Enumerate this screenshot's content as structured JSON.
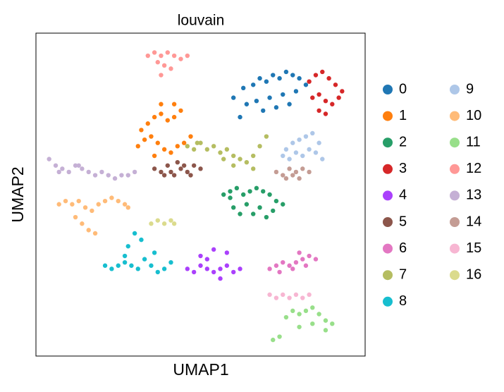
{
  "chart_data": {
    "type": "scatter",
    "title": "louvain",
    "x_label": "UMAP1",
    "y_label": "UMAP2",
    "xlim": [
      0,
      100
    ],
    "ylim": [
      0,
      100
    ],
    "legend": "right",
    "series": [
      {
        "name": "0",
        "color": "#1f77b4",
        "x": [
          60,
          63,
          66,
          68,
          70,
          72,
          74,
          76,
          78,
          80,
          82,
          64,
          67,
          71,
          75,
          79,
          69,
          73,
          77,
          62
        ],
        "y": [
          80,
          83,
          84,
          86,
          85,
          87,
          86,
          88,
          87,
          86,
          84,
          78,
          79,
          80,
          81,
          82,
          76,
          77,
          78,
          74
        ]
      },
      {
        "name": "1",
        "color": "#ff7f0e",
        "x": [
          31,
          33,
          35,
          37,
          39,
          41,
          43,
          45,
          47,
          34,
          36,
          38,
          40,
          42,
          44,
          32,
          38,
          42,
          36
        ],
        "y": [
          65,
          67,
          68,
          66,
          64,
          63,
          65,
          66,
          68,
          72,
          74,
          75,
          73,
          74,
          76,
          70,
          78,
          78,
          62
        ]
      },
      {
        "name": "2",
        "color": "#279e68",
        "x": [
          57,
          59,
          61,
          63,
          65,
          67,
          69,
          71,
          73,
          75,
          60,
          64,
          68,
          72,
          62,
          66,
          70,
          59
        ],
        "y": [
          50,
          51,
          52,
          50,
          51,
          52,
          51,
          50,
          48,
          47,
          46,
          47,
          46,
          45,
          44,
          44,
          43,
          49
        ]
      },
      {
        "name": "3",
        "color": "#d62728",
        "x": [
          83,
          85,
          87,
          89,
          91,
          93,
          84,
          86,
          88,
          90,
          92,
          88,
          86
        ],
        "y": [
          85,
          87,
          88,
          86,
          84,
          82,
          80,
          81,
          79,
          78,
          80,
          75,
          76
        ]
      },
      {
        "name": "4",
        "color": "#aa40fc",
        "x": [
          46,
          48,
          50,
          52,
          54,
          56,
          58,
          60,
          62,
          50,
          54,
          58,
          52,
          56
        ],
        "y": [
          27,
          26,
          28,
          27,
          26,
          27,
          28,
          26,
          27,
          31,
          33,
          32,
          30,
          24
        ]
      },
      {
        "name": "5",
        "color": "#8c564b",
        "x": [
          36,
          38,
          40,
          42,
          44,
          46,
          48,
          50,
          39,
          43,
          47,
          41,
          45
        ],
        "y": [
          58,
          57,
          59,
          56,
          58,
          57,
          59,
          58,
          56,
          60,
          56,
          57,
          59
        ]
      },
      {
        "name": "6",
        "color": "#e377c2",
        "x": [
          71,
          73,
          75,
          77,
          79,
          81,
          83,
          85,
          74,
          78,
          82,
          80
        ],
        "y": [
          27,
          28,
          29,
          28,
          29,
          30,
          31,
          30,
          26,
          27,
          28,
          32
        ]
      },
      {
        "name": "7",
        "color": "#b5bd61",
        "x": [
          46,
          48,
          50,
          52,
          54,
          56,
          58,
          60,
          62,
          64,
          66,
          68,
          70,
          60,
          66,
          57,
          49
        ],
        "y": [
          65,
          64,
          66,
          64,
          65,
          63,
          64,
          62,
          61,
          60,
          62,
          65,
          68,
          59,
          58,
          61,
          66
        ]
      },
      {
        "name": "8",
        "color": "#17becf",
        "x": [
          21,
          23,
          25,
          27,
          29,
          31,
          33,
          35,
          37,
          39,
          41,
          28,
          30,
          32,
          36,
          27
        ],
        "y": [
          28,
          27,
          28,
          29,
          28,
          27,
          30,
          28,
          26,
          27,
          29,
          34,
          38,
          36,
          32,
          31
        ]
      },
      {
        "name": "9",
        "color": "#aec7e8",
        "x": [
          75,
          77,
          79,
          81,
          83,
          85,
          87,
          78,
          80,
          82,
          84,
          76,
          86
        ],
        "y": [
          62,
          61,
          63,
          62,
          64,
          63,
          61,
          66,
          67,
          68,
          69,
          64,
          66
        ]
      },
      {
        "name": "10",
        "color": "#ffbb78",
        "x": [
          7,
          9,
          11,
          13,
          15,
          17,
          19,
          21,
          23,
          25,
          27,
          28,
          12,
          14,
          16,
          18
        ],
        "y": [
          47,
          48,
          47,
          48,
          46,
          45,
          47,
          48,
          49,
          48,
          47,
          46,
          43,
          41,
          39,
          38
        ]
      },
      {
        "name": "11",
        "color": "#98df8a",
        "x": [
          76,
          78,
          80,
          82,
          84,
          86,
          88,
          90,
          80,
          84,
          88,
          74,
          72
        ],
        "y": [
          12,
          14,
          13,
          14,
          15,
          13,
          11,
          10,
          9,
          10,
          8,
          6,
          5
        ]
      },
      {
        "name": "12",
        "color": "#ff9896",
        "x": [
          34,
          36,
          38,
          40,
          42,
          44,
          46,
          37,
          39,
          41,
          38
        ],
        "y": [
          93,
          94,
          93,
          94,
          93,
          92,
          93,
          91,
          90,
          89,
          87
        ]
      },
      {
        "name": "13",
        "color": "#c5b0d5",
        "x": [
          4,
          6,
          8,
          10,
          12,
          14,
          16,
          18,
          20,
          22,
          24,
          26,
          28,
          30,
          7,
          13
        ],
        "y": [
          61,
          59,
          58,
          57,
          59,
          58,
          57,
          56,
          57,
          56,
          55,
          56,
          56,
          57,
          57,
          59
        ]
      },
      {
        "name": "14",
        "color": "#c49c94",
        "x": [
          73,
          75,
          77,
          79,
          81,
          83,
          76,
          80,
          78
        ],
        "y": [
          57,
          56,
          58,
          57,
          58,
          57,
          55,
          55,
          56
        ]
      },
      {
        "name": "15",
        "color": "#f7b6d2",
        "x": [
          71,
          73,
          75,
          77,
          79,
          81,
          83
        ],
        "y": [
          19,
          18,
          19,
          18,
          19,
          18,
          19
        ]
      },
      {
        "name": "16",
        "color": "#dbdb8d",
        "x": [
          35,
          37,
          39,
          41,
          42
        ],
        "y": [
          41,
          42,
          41,
          42,
          41
        ]
      }
    ]
  }
}
